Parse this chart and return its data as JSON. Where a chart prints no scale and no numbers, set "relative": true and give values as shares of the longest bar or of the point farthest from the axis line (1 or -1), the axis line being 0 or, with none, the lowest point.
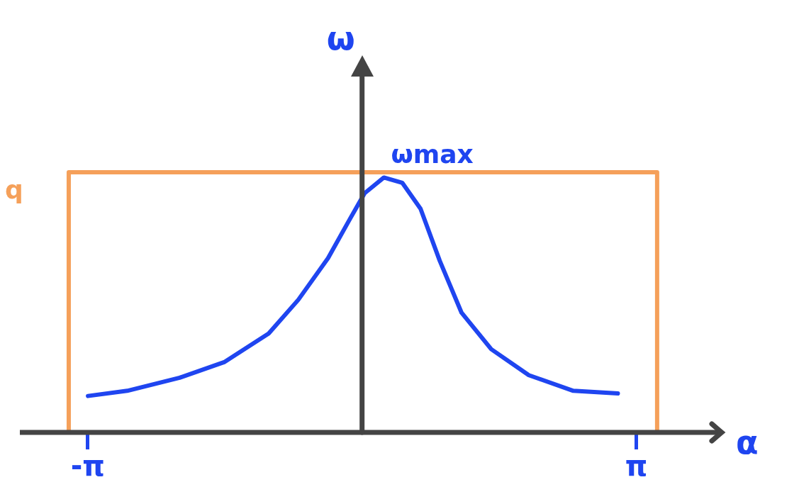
{
  "chart_data": {
    "type": "line",
    "relative": true,
    "xlabel": "α",
    "ylabel": "ω",
    "xlim": [
      -3.92,
      4.12
    ],
    "xticks": [
      {
        "value": -3.14159,
        "label": "-π"
      },
      {
        "value": 3.14159,
        "label": "π"
      }
    ],
    "tick_labels": "x",
    "grid": false,
    "legend": false,
    "marker": "none",
    "series": [
      {
        "color": "#1f45f0",
        "x": [
          -3.14,
          -2.69,
          -2.09,
          -1.58,
          -1.07,
          -0.73,
          -0.39,
          -0.14,
          0.03,
          0.25,
          0.46,
          0.67,
          0.89,
          1.14,
          1.48,
          1.91,
          2.42,
          2.93
        ],
        "values": [
          0.14,
          0.16,
          0.21,
          0.27,
          0.38,
          0.51,
          0.67,
          0.82,
          0.92,
          0.98,
          0.96,
          0.86,
          0.66,
          0.46,
          0.32,
          0.22,
          0.16,
          0.15
        ]
      },
      {
        "type": "line",
        "color": "#f5a05a",
        "x": [
          -3.36,
          -3.36,
          3.38,
          3.38
        ],
        "values": [
          0,
          1,
          1,
          0
        ]
      }
    ],
    "annotations": [
      "q",
      {
        "text": "ωmax",
        "x": 0.25,
        "y": 0.98
      }
    ]
  }
}
